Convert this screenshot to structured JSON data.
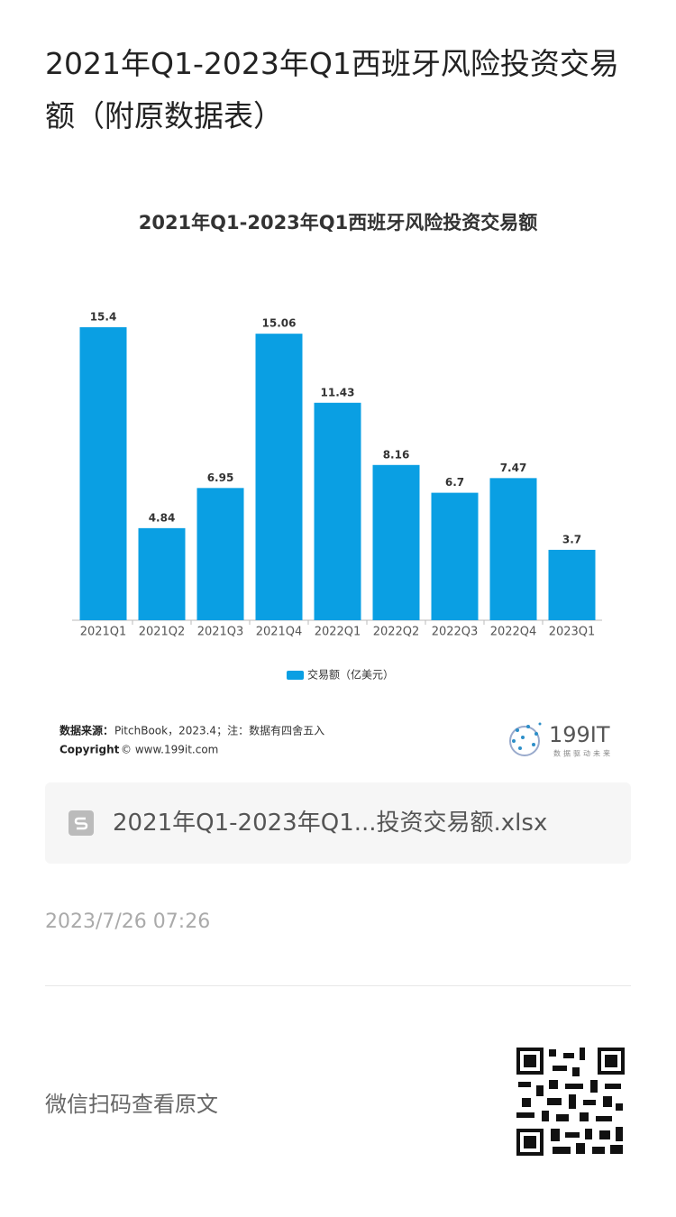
{
  "page_title": "2021年Q1-2023年Q1西班牙风险投资交易额（附原数据表）",
  "chart_data": {
    "type": "bar",
    "title": "2021年Q1-2023年Q1西班牙风险投资交易额",
    "categories": [
      "2021Q1",
      "2021Q2",
      "2021Q3",
      "2021Q4",
      "2022Q1",
      "2022Q2",
      "2022Q3",
      "2022Q4",
      "2023Q1"
    ],
    "series": [
      {
        "name": "交易额（亿美元）",
        "color": "#0a9fe3",
        "values": [
          15.4,
          4.84,
          6.95,
          15.06,
          11.43,
          8.16,
          6.7,
          7.47,
          3.7
        ]
      }
    ],
    "legend": "bottom",
    "source_label": "数据来源：",
    "source_text": "PitchBook，2023.4；注：数据有四舍五入",
    "copyright_label": "Copyright",
    "copyright_text": "© www.199it.com",
    "logo": "199IT",
    "logo_tagline": "数据驱动未来"
  },
  "attachment": {
    "filename": "2021年Q1-2023年Q1...投资交易额.xlsx"
  },
  "date": "2023/7/26 07:26",
  "footer": {
    "text": "微信扫码查看原文"
  }
}
